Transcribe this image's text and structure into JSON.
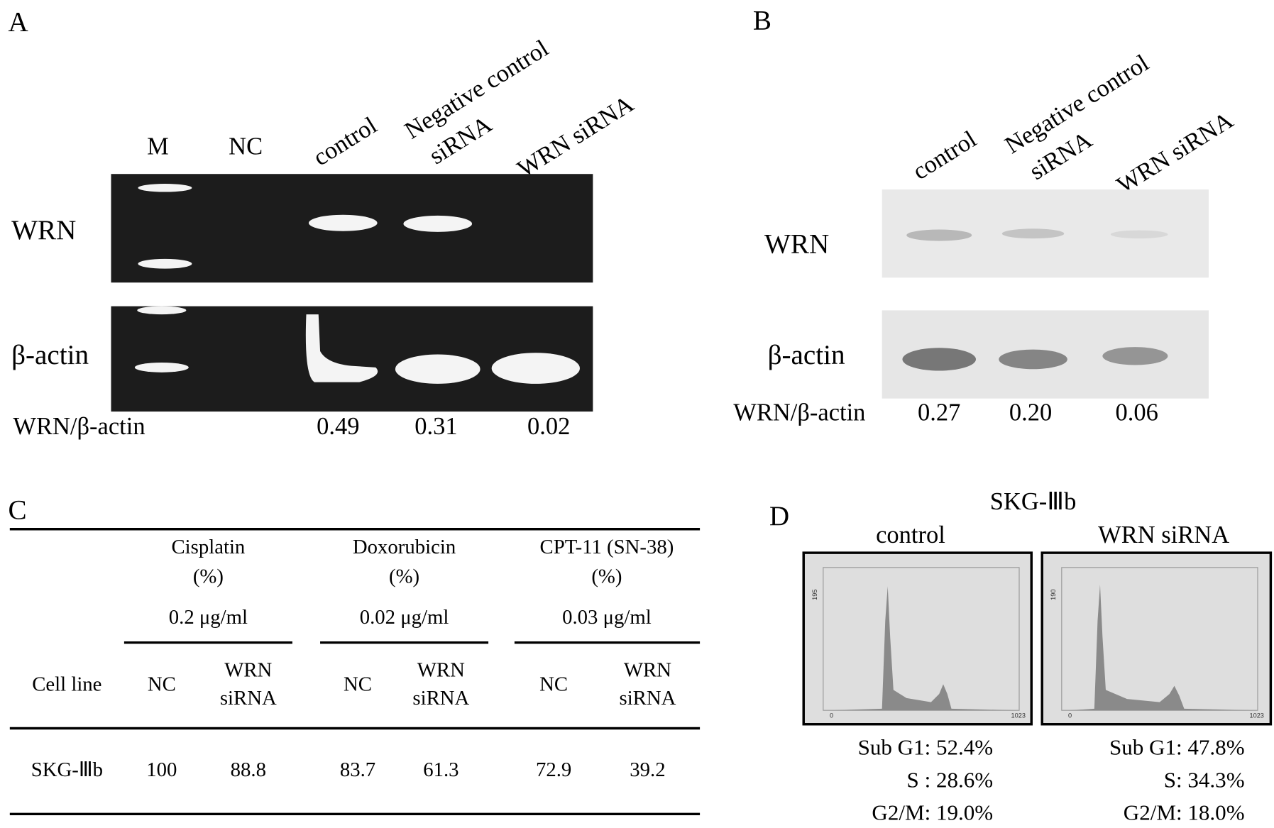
{
  "panel_a": {
    "label": "A",
    "lane_labels": [
      [
        "M"
      ],
      [
        "NC"
      ],
      [
        "control"
      ],
      [
        "Negative control",
        "siRNA"
      ],
      [
        "WRN siRNA"
      ]
    ],
    "rows": [
      "WRN",
      "β-actin"
    ],
    "ratio_label": "WRN/β-actin",
    "ratios": [
      "0.49",
      "0.31",
      "0.02"
    ]
  },
  "panel_b": {
    "label": "B",
    "lane_labels": [
      [
        "control"
      ],
      [
        "Negative control",
        "siRNA"
      ],
      [
        "WRN siRNA"
      ]
    ],
    "rows": [
      "WRN",
      "β-actin"
    ],
    "ratio_label": "WRN/β-actin",
    "ratios": [
      "0.27",
      "0.20",
      "0.06"
    ]
  },
  "panel_c": {
    "label": "C",
    "drugs": [
      [
        "Cisplatin",
        "(%)",
        "0.2  μg/ml"
      ],
      [
        "Doxorubicin",
        "(%)",
        "0.02  μg/ml"
      ],
      [
        "CPT-11 (SN-38)",
        "(%)",
        "0.03  μg/ml"
      ]
    ],
    "columns": [
      "Cell line",
      [
        "NC"
      ],
      [
        "WRN",
        "siRNA"
      ],
      [
        "NC"
      ],
      [
        "WRN",
        "siRNA"
      ],
      [
        "NC"
      ],
      [
        "WRN",
        "siRNA"
      ]
    ],
    "rows": [
      [
        "SKG-Ⅲb",
        "100",
        "88.8",
        "83.7",
        "61.3",
        "72.9",
        "39.2"
      ]
    ]
  },
  "panel_d": {
    "label": "D",
    "title": "SKG-Ⅲb",
    "plots": [
      {
        "name": "control",
        "ymax": "195",
        "xmin": "0",
        "xmax": "1023",
        "stats": [
          "Sub G1: 52.4%",
          "S : 28.6%",
          "G2/M: 19.0%"
        ]
      },
      {
        "name": "WRN siRNA",
        "ymax": "190",
        "xmin": "0",
        "xmax": "1023",
        "stats": [
          "Sub G1: 47.8%",
          "S: 34.3%",
          "G2/M: 18.0%"
        ]
      }
    ]
  }
}
